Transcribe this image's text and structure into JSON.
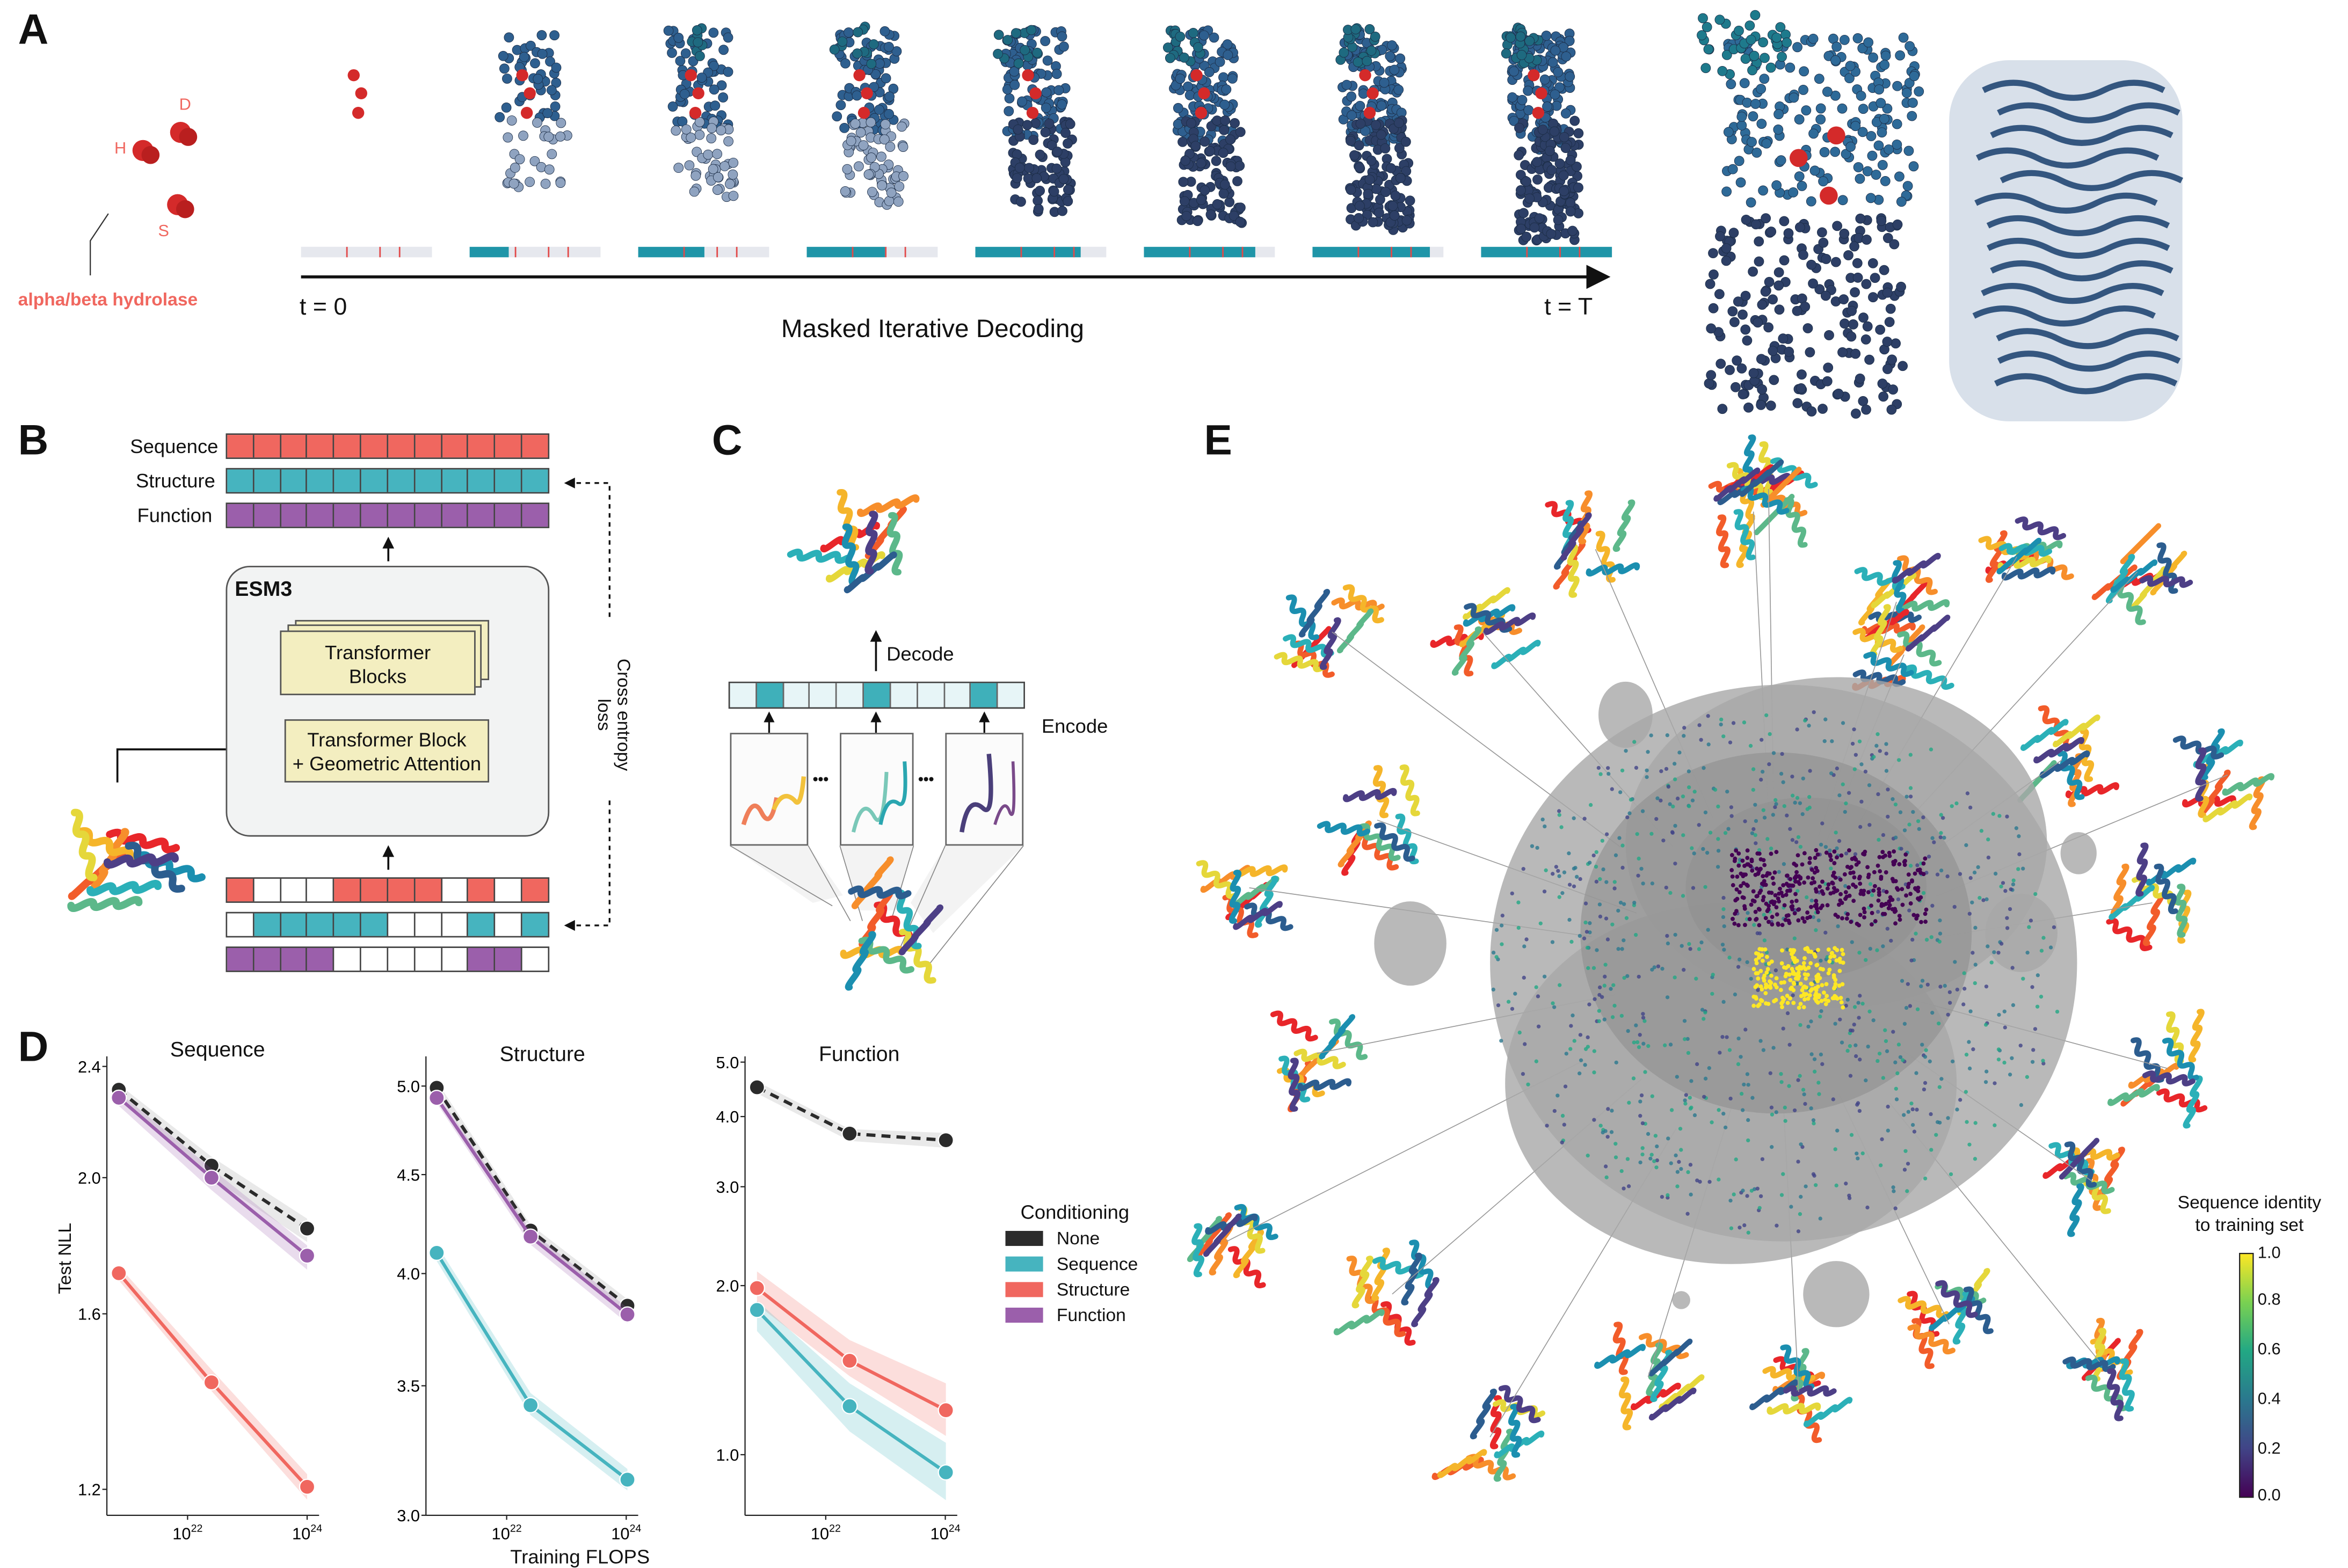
{
  "panel_letters": {
    "a": "A",
    "b": "B",
    "c": "C",
    "d": "D",
    "e": "E"
  },
  "panel_a": {
    "residue_labels": {
      "d": "D",
      "h": "H",
      "s": "S"
    },
    "fold_label": "alpha/beta hydrolase",
    "t_start": "t = 0",
    "t_end": "t = T",
    "axis_label": "Masked Iterative Decoding",
    "decoding_fill_fractions": [
      0.0,
      0.3,
      0.5,
      0.6,
      0.8,
      0.85,
      0.9,
      1.0
    ]
  },
  "panel_b": {
    "tracks": [
      "Sequence",
      "Structure",
      "Function"
    ],
    "model_name": "ESM3",
    "blocks_label": [
      "Transformer",
      "Blocks"
    ],
    "geo_block_label": [
      "Transformer Block",
      "+ Geometric Attention"
    ],
    "loss_label": [
      "Cross entropy",
      "loss"
    ],
    "masked_tracks": {
      "sequence": [
        1,
        0,
        0,
        0,
        1,
        1,
        1,
        1,
        0,
        1,
        0,
        1
      ],
      "structure": [
        0,
        1,
        1,
        1,
        1,
        1,
        0,
        0,
        0,
        1,
        0,
        1
      ],
      "function": [
        1,
        1,
        1,
        1,
        0,
        0,
        0,
        0,
        0,
        1,
        1,
        0
      ]
    }
  },
  "panel_c": {
    "decode_label": "Decode",
    "encode_label": "Encode",
    "ellipsis": "•••",
    "structure_tokens": [
      0,
      1,
      0,
      0,
      0,
      1,
      0,
      0,
      0,
      1,
      0
    ]
  },
  "panel_e": {
    "colorbar_title": [
      "Sequence identity",
      "to training set"
    ],
    "colorbar_ticks": [
      "1.0",
      "0.8",
      "0.6",
      "0.4",
      "0.2",
      "0.0"
    ],
    "colorbar_range": [
      0.0,
      1.0
    ]
  },
  "colors": {
    "none": "#2b2b2b",
    "sequence": "#46b4bf",
    "structure": "#f0675f",
    "function": "#9b5fab",
    "catalytic": "#d42a2a"
  },
  "legend": {
    "title": "Conditioning",
    "items": [
      {
        "label": "None",
        "key": "none"
      },
      {
        "label": "Sequence",
        "key": "sequence"
      },
      {
        "label": "Structure",
        "key": "structure"
      },
      {
        "label": "Function",
        "key": "function"
      }
    ]
  },
  "axis_labels": {
    "y": "Test NLL",
    "x": "Training FLOPS"
  },
  "chart_data": [
    {
      "type": "line",
      "title": "Sequence",
      "xlabel": "Training FLOPS",
      "ylabel": "Test NLL",
      "x_scale": "log10",
      "y_scale": "log",
      "x": [
        20.85,
        22.4,
        24.0
      ],
      "xlim": [
        20.65,
        24.2
      ],
      "ylim": [
        1.15,
        2.44
      ],
      "yticks": [
        "2.4",
        "2.0",
        "1.6",
        "1.2"
      ],
      "xticks": [
        {
          "base": "10",
          "exp": "22",
          "value": 22
        },
        {
          "base": "10",
          "exp": "24",
          "value": 24
        }
      ],
      "series": [
        {
          "name": "None",
          "key": "none",
          "dashed": true,
          "values": [
            2.31,
            2.04,
            1.84
          ],
          "ci_low": [
            2.29,
            2.0,
            1.8
          ],
          "ci_high": [
            2.33,
            2.07,
            1.87
          ]
        },
        {
          "name": "Function",
          "key": "function",
          "values": [
            2.28,
            2.0,
            1.76
          ],
          "ci_low": [
            2.25,
            1.96,
            1.72
          ],
          "ci_high": [
            2.3,
            2.03,
            1.79
          ]
        },
        {
          "name": "Structure",
          "key": "structure",
          "values": [
            1.71,
            1.43,
            1.205
          ],
          "ci_low": [
            1.69,
            1.41,
            1.18
          ],
          "ci_high": [
            1.73,
            1.46,
            1.23
          ]
        }
      ]
    },
    {
      "type": "line",
      "title": "Structure",
      "xlabel": "Training FLOPS",
      "ylabel": "",
      "x_scale": "log10",
      "y_scale": "log",
      "x": [
        20.83,
        22.4,
        24.02
      ],
      "xlim": [
        20.65,
        24.2
      ],
      "ylim": [
        3.0,
        5.18
      ],
      "yticks": [
        "5.0",
        "4.5",
        "4.0",
        "3.5",
        "3.0"
      ],
      "xticks": [
        {
          "base": "10",
          "exp": "22",
          "value": 22
        },
        {
          "base": "10",
          "exp": "24",
          "value": 24
        }
      ],
      "series": [
        {
          "name": "None",
          "key": "none",
          "dashed": true,
          "values": [
            4.99,
            4.21,
            3.85
          ],
          "ci_low": [
            4.96,
            4.18,
            3.82
          ],
          "ci_high": [
            5.03,
            4.24,
            3.88
          ]
        },
        {
          "name": "Function",
          "key": "function",
          "values": [
            4.93,
            4.18,
            3.81
          ],
          "ci_low": [
            4.9,
            4.14,
            3.77
          ],
          "ci_high": [
            4.96,
            4.21,
            3.84
          ]
        },
        {
          "name": "Sequence",
          "key": "sequence",
          "values": [
            4.1,
            3.42,
            3.13
          ],
          "ci_low": [
            4.06,
            3.38,
            3.09
          ],
          "ci_high": [
            4.14,
            3.47,
            3.17
          ]
        }
      ]
    },
    {
      "type": "line",
      "title": "Function",
      "xlabel": "Training FLOPS",
      "ylabel": "",
      "x_scale": "log10",
      "y_scale": "log",
      "x": [
        20.85,
        22.4,
        24.01
      ],
      "xlim": [
        20.65,
        24.2
      ],
      "ylim": [
        0.78,
        5.12
      ],
      "yticks": [
        "5.0",
        "4.0",
        "3.0",
        "2.0",
        "1.0"
      ],
      "xticks": [
        {
          "base": "10",
          "exp": "22",
          "value": 22
        },
        {
          "base": "10",
          "exp": "24",
          "value": 24
        }
      ],
      "series": [
        {
          "name": "None",
          "key": "none",
          "dashed": true,
          "values": [
            4.51,
            3.73,
            3.63
          ],
          "ci_low": [
            4.4,
            3.62,
            3.52
          ],
          "ci_high": [
            4.62,
            3.8,
            3.74
          ]
        },
        {
          "name": "Structure",
          "key": "structure",
          "values": [
            1.98,
            1.47,
            1.2
          ],
          "ci_low": [
            1.85,
            1.38,
            1.08
          ],
          "ci_high": [
            2.12,
            1.6,
            1.34
          ]
        },
        {
          "name": "Sequence",
          "key": "sequence",
          "values": [
            1.81,
            1.22,
            0.93
          ],
          "ci_low": [
            1.66,
            1.1,
            0.83
          ],
          "ci_high": [
            1.88,
            1.34,
            1.05
          ]
        }
      ]
    }
  ]
}
